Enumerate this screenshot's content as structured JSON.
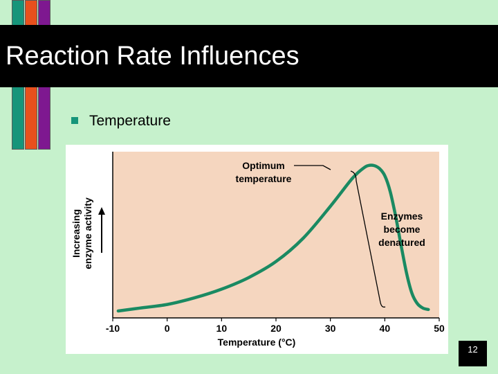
{
  "slide": {
    "title": "Reaction Rate Influences",
    "bullet": "Temperature",
    "page_number": "12",
    "colors": {
      "background": "#c6f1cc",
      "title_band": "#000000",
      "bullet": "#16957a",
      "bar_teal": "#16957a",
      "bar_orange": "#e8501d",
      "bar_purple": "#7e1890",
      "plot_bg": "#f5d6bf",
      "curve": "#1a8a62"
    }
  },
  "chart_data": {
    "type": "line",
    "xlabel": "Temperature (°C)",
    "ylabel_line1": "Increasing",
    "ylabel_line2": "enzyme activity",
    "x_ticks": [
      "-10",
      "0",
      "10",
      "20",
      "30",
      "40",
      "50"
    ],
    "xlim": [
      -10,
      50
    ],
    "ylim": [
      0,
      1
    ],
    "series": [
      {
        "x": [
          -9,
          -5,
          0,
          5,
          10,
          15,
          20,
          25,
          30,
          34,
          36,
          37,
          38,
          39,
          40,
          41,
          42,
          43,
          44,
          45,
          46,
          47,
          48
        ],
        "y": [
          0.0,
          0.02,
          0.045,
          0.09,
          0.15,
          0.23,
          0.34,
          0.5,
          0.72,
          0.91,
          0.98,
          1.0,
          1.0,
          0.98,
          0.93,
          0.82,
          0.65,
          0.45,
          0.26,
          0.12,
          0.05,
          0.02,
          0.01
        ]
      }
    ],
    "annotations": [
      {
        "line1": "Optimum",
        "line2": "temperature"
      },
      {
        "line1": "Enzymes",
        "line2": "become",
        "line3": "denatured"
      }
    ]
  }
}
